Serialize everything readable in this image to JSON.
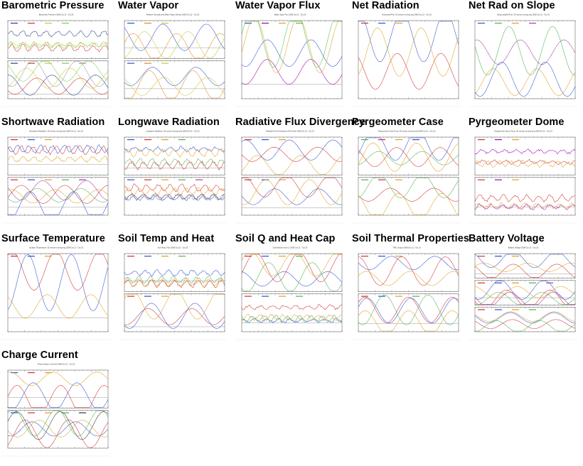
{
  "page": {
    "title": ""
  },
  "tiles": [
    {
      "title": "Barometric Pressure",
      "caption": "Barometric Pressure 2008 Oct 21 - Oct 23",
      "panels": 2,
      "colors": [
        "#2a3c8c",
        "#d03030",
        "#c8c83a",
        "#7ad04a",
        "#999999",
        "#a040a0"
      ]
    },
    {
      "title": "Water Vapor",
      "caption": "Relative Humidity and Water Vapor Density 2008 Oct 21 - Oct 23",
      "panels": 2,
      "colors": [
        "#3050d0",
        "#e08a20",
        "#c8c83a",
        "#50b050",
        "#a040a0",
        "#333333"
      ]
    },
    {
      "title": "Water Vapor Flux",
      "caption": "Water Vapor Flux 2008 Oct 21 - Oct 23",
      "panels": 1,
      "colors": [
        "#3050d0",
        "#a000a0",
        "#e0a020",
        "#50c050",
        "#d03030"
      ]
    },
    {
      "title": "Net Radiation",
      "caption": "Horizontal Rnet: 30 minute running avg 2008 Oct 21 - Oct 23",
      "panels": 1,
      "colors": [
        "#d03030",
        "#3050d0",
        "#e0a020",
        "#50b050",
        "#a040a0"
      ]
    },
    {
      "title": "Net Rad on Slope",
      "caption": "Slope parallel Rnet: 30 minute running avg 2008 Oct 21 - Oct 23",
      "panels": 1,
      "colors": [
        "#3050d0",
        "#50b050",
        "#e0a020",
        "#a040a0"
      ]
    },
    {
      "title": "Shortwave Radiation",
      "caption": "Shortwave Radiation: 30 minute running avg 2008 Oct 21 - Oct 23",
      "panels": 2,
      "colors": [
        "#d03030",
        "#3050d0",
        "#e0a020",
        "#50b050",
        "#a040a0"
      ]
    },
    {
      "title": "Longwave Radiation",
      "caption": "Longwave Radiation: 30 minute running avg 2008 Oct 21 - Oct 23",
      "panels": 2,
      "colors": [
        "#3050d0",
        "#d03030",
        "#e0a020",
        "#50b050",
        "#a040a0"
      ]
    },
    {
      "title": "Radiative Flux Divergence",
      "caption": "Radiative Flux Divergence Flat Tower 2008 Oct 21 - Oct 23",
      "panels": 2,
      "colors": [
        "#d03030",
        "#3050d0",
        "#e0a020",
        "#50b050",
        "#333333",
        "#40b0d0"
      ]
    },
    {
      "title": "Pyrgeometer Case",
      "caption": "Pyrgeometer Case Temp: 30 minute running avg 2008 Oct 21 - Oct 23",
      "panels": 2,
      "colors": [
        "#50b050",
        "#d03030",
        "#e0a020",
        "#3050d0",
        "#333333"
      ]
    },
    {
      "title": "Pyrgeometer Dome",
      "caption": "Pyrgeometer Dome Temp: 30 minute running avg 2008 Oct 21 - Oct 23",
      "panels": 2,
      "colors": [
        "#d03030",
        "#a000c0",
        "#e0a020",
        "#50b050",
        "#333333"
      ]
    },
    {
      "title": "Surface Temperature",
      "caption": "Surface Temperature: 30 minute running avg 2008 Oct 21 - Oct 23",
      "panels": 1,
      "colors": [
        "#d03030",
        "#3050d0",
        "#e0a020",
        "#50b050",
        "#a040a0",
        "#333333"
      ]
    },
    {
      "title": "Soil Temp and Heat",
      "caption": "Soil Temp, Flux 2008 Oct 21 - Oct 23",
      "panels": 2,
      "colors": [
        "#d03030",
        "#3050d0",
        "#e0a020",
        "#50b050",
        "#a040a0",
        "#333333"
      ]
    },
    {
      "title": "Soil Q and Heat Cap",
      "caption": "Soil Moisture and Cv 2008 Oct 21 - Oct 23",
      "panels": 2,
      "colors": [
        "#d03030",
        "#3050d0",
        "#e0a020",
        "#50b050",
        "#999999"
      ]
    },
    {
      "title": "Soil Thermal Properties",
      "caption": "TP01 Output 2008 Oct 21 - Oct 23",
      "panels": 2,
      "colors": [
        "#d03030",
        "#3050d0",
        "#e0a020",
        "#50b050",
        "#333333"
      ]
    },
    {
      "title": "Battery Voltage",
      "caption": "Battery Voltage 2008 Oct 21 - Oct 23",
      "panels": 3,
      "colors": [
        "#d03030",
        "#3050d0",
        "#e0a020",
        "#50b050",
        "#a040a0",
        "#333333"
      ]
    },
    {
      "title": "Charge Current",
      "caption": "Power System Currents 2008 Oct 21 - Oct 23",
      "panels": 2,
      "colors": [
        "#3050d0",
        "#d03030",
        "#e0a020",
        "#50b050",
        "#333333"
      ]
    }
  ]
}
